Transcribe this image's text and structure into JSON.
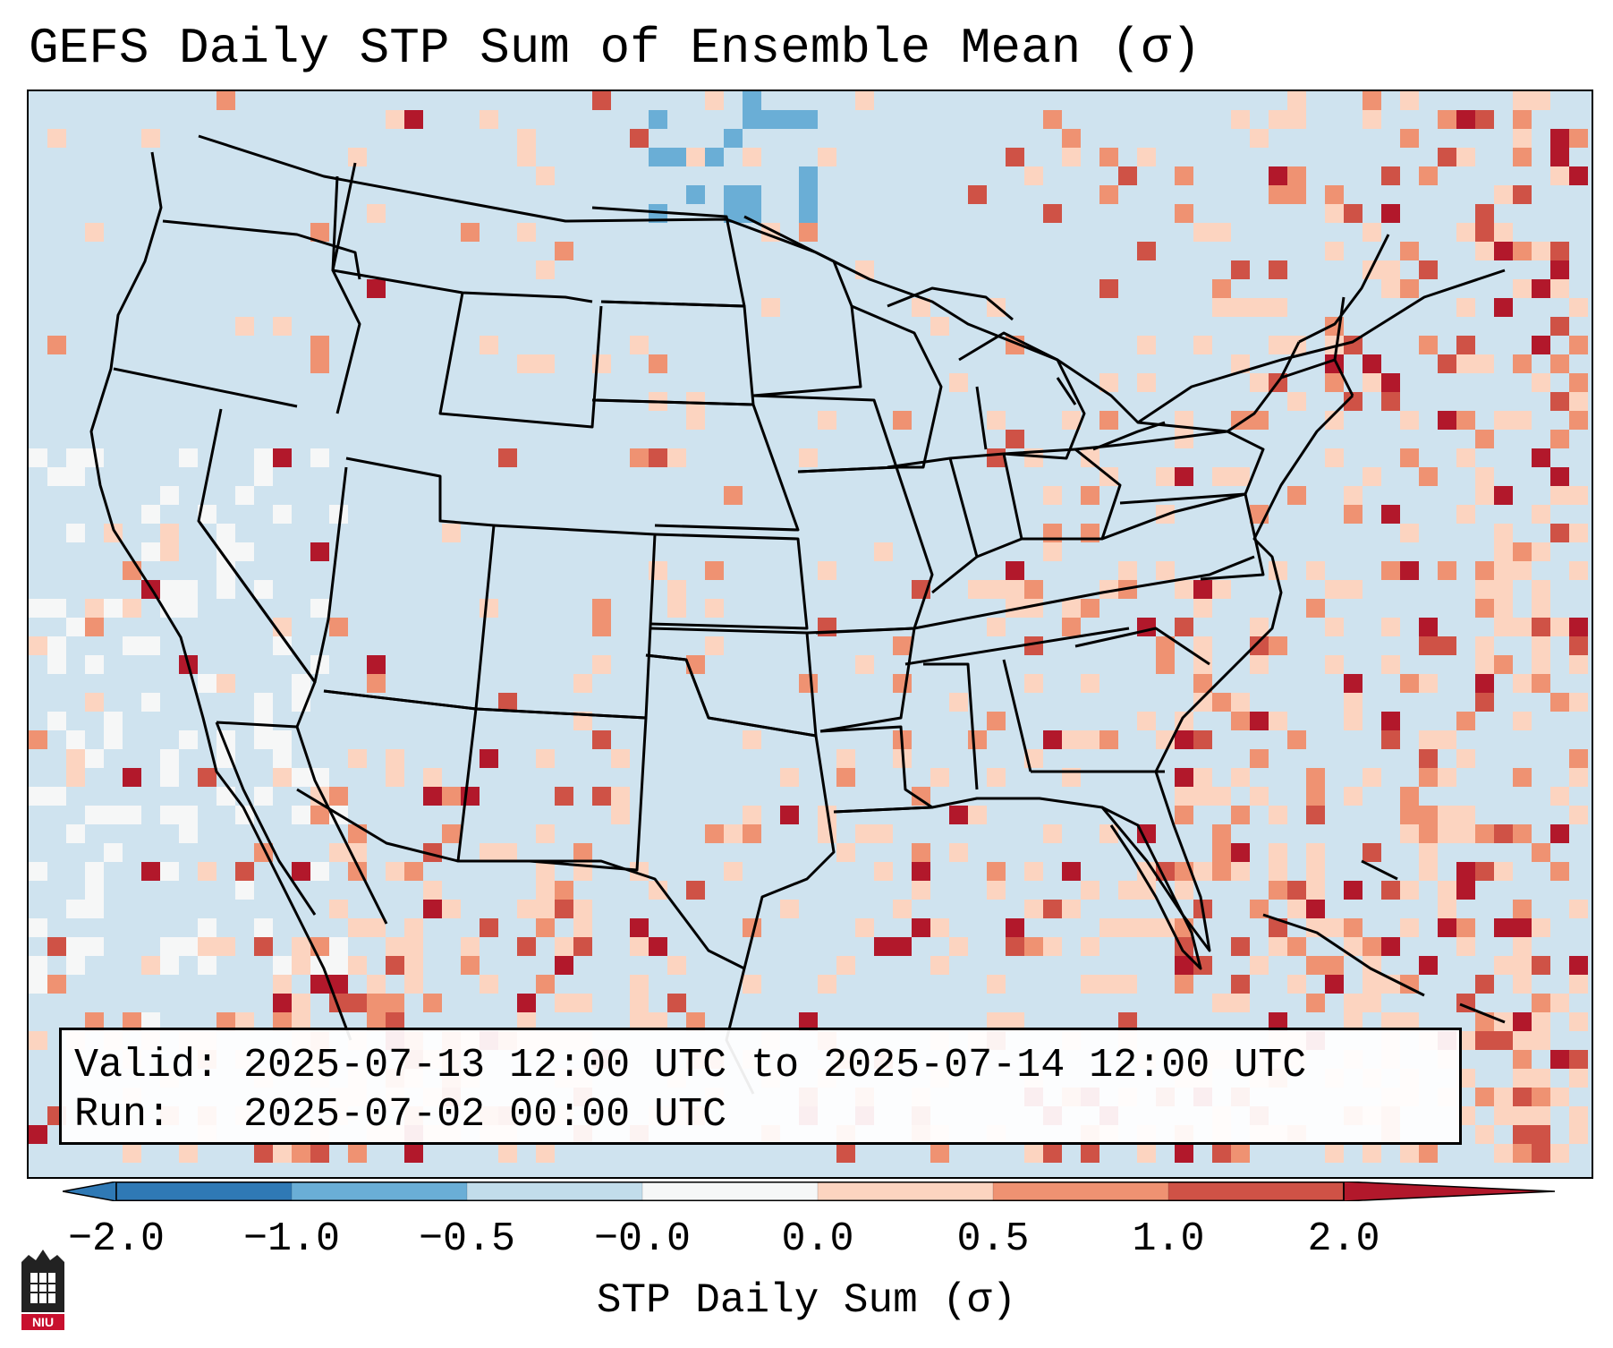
{
  "title": "GEFS Daily STP Sum of Ensemble Mean (σ)",
  "info": {
    "valid_label": "Valid:",
    "valid_value": "2025-07-13 12:00 UTC to 2025-07-14 12:00 UTC",
    "run_label": "Run:",
    "run_value": "2025-07-02 00:00 UTC"
  },
  "colorbar": {
    "label": "STP Daily Sum (σ)",
    "ticks": [
      "−2.0",
      "−1.0",
      "−0.5",
      "−0.0",
      "0.0",
      "0.5",
      "1.0",
      "2.0"
    ],
    "colors": [
      "#2f79b5",
      "#6aaed6",
      "#c2ddeb",
      "#f6f7f7",
      "#fcd4c0",
      "#ef9272",
      "#cf5246",
      "#b2182b"
    ]
  },
  "map": {
    "background_color": "#cfe3ef",
    "boundary_color": "#000000"
  },
  "logo_text": "NIU"
}
